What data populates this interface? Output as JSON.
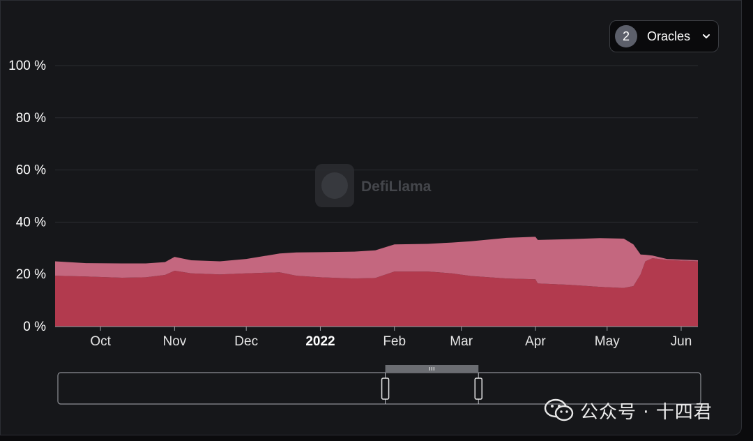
{
  "oracle_selector": {
    "count": "2",
    "label": "Oracles"
  },
  "watermark": {
    "text": "DefiLlama"
  },
  "footer_credit": {
    "text": "公众号 · 十四君"
  },
  "colors": {
    "background": "#16171a",
    "series_top": "#c4677f",
    "series_bottom": "#b23a4e",
    "grid": "#2a2c30",
    "slider_handle": "#6b6d72"
  },
  "chart_data": {
    "type": "area",
    "stacked": true,
    "percent": true,
    "ylim": [
      0,
      100
    ],
    "y_ticks": [
      "0 %",
      "20 %",
      "40 %",
      "60 %",
      "80 %",
      "100 %"
    ],
    "y_tick_values": [
      0,
      20,
      40,
      60,
      80,
      100
    ],
    "x_range": [
      "2021-09-12",
      "2022-06-08"
    ],
    "x_ticks": [
      {
        "label": "Oct",
        "date": "2021-10-01",
        "bold": false
      },
      {
        "label": "Nov",
        "date": "2021-11-01",
        "bold": false
      },
      {
        "label": "Dec",
        "date": "2021-12-01",
        "bold": false
      },
      {
        "label": "2022",
        "date": "2022-01-01",
        "bold": true
      },
      {
        "label": "Feb",
        "date": "2022-02-01",
        "bold": false
      },
      {
        "label": "Mar",
        "date": "2022-03-01",
        "bold": false
      },
      {
        "label": "Apr",
        "date": "2022-04-01",
        "bold": false
      },
      {
        "label": "May",
        "date": "2022-05-01",
        "bold": false
      },
      {
        "label": "Jun",
        "date": "2022-06-01",
        "bold": false
      }
    ],
    "grid": true,
    "series": [
      {
        "color": "#b23a4e",
        "points": [
          [
            "2021-09-12",
            19.5
          ],
          [
            "2021-09-25",
            19.2
          ],
          [
            "2021-10-10",
            18.7
          ],
          [
            "2021-10-20",
            18.9
          ],
          [
            "2021-10-28",
            19.8
          ],
          [
            "2021-11-01",
            21.4
          ],
          [
            "2021-11-08",
            20.4
          ],
          [
            "2021-11-20",
            20.0
          ],
          [
            "2021-12-01",
            20.4
          ],
          [
            "2021-12-15",
            20.8
          ],
          [
            "2021-12-22",
            19.5
          ],
          [
            "2022-01-01",
            18.9
          ],
          [
            "2022-01-15",
            18.4
          ],
          [
            "2022-01-24",
            18.6
          ],
          [
            "2022-02-01",
            21.1
          ],
          [
            "2022-02-15",
            21.1
          ],
          [
            "2022-02-25",
            20.4
          ],
          [
            "2022-03-05",
            19.4
          ],
          [
            "2022-03-20",
            18.4
          ],
          [
            "2022-04-01",
            18.1
          ],
          [
            "2022-04-02",
            16.5
          ],
          [
            "2022-04-15",
            16.0
          ],
          [
            "2022-04-28",
            15.2
          ],
          [
            "2022-05-08",
            14.8
          ],
          [
            "2022-05-12",
            15.5
          ],
          [
            "2022-05-15",
            20.0
          ],
          [
            "2022-05-17",
            25.0
          ],
          [
            "2022-05-20",
            26.2
          ],
          [
            "2022-05-26",
            25.5
          ],
          [
            "2022-06-08",
            25.0
          ]
        ]
      },
      {
        "color": "#c4677f",
        "points": [
          [
            "2021-09-12",
            5.5
          ],
          [
            "2021-09-25",
            5.1
          ],
          [
            "2021-10-10",
            5.5
          ],
          [
            "2021-10-20",
            5.3
          ],
          [
            "2021-10-28",
            4.9
          ],
          [
            "2021-11-01",
            5.3
          ],
          [
            "2021-11-08",
            5.0
          ],
          [
            "2021-11-20",
            5.0
          ],
          [
            "2021-12-01",
            5.5
          ],
          [
            "2021-12-15",
            7.2
          ],
          [
            "2021-12-22",
            8.9
          ],
          [
            "2022-01-01",
            9.6
          ],
          [
            "2022-01-15",
            10.3
          ],
          [
            "2022-01-24",
            10.6
          ],
          [
            "2022-02-01",
            10.4
          ],
          [
            "2022-02-15",
            10.6
          ],
          [
            "2022-02-25",
            11.8
          ],
          [
            "2022-03-05",
            13.3
          ],
          [
            "2022-03-20",
            15.6
          ],
          [
            "2022-04-01",
            16.3
          ],
          [
            "2022-04-02",
            16.7
          ],
          [
            "2022-04-15",
            17.5
          ],
          [
            "2022-04-28",
            18.7
          ],
          [
            "2022-05-08",
            18.9
          ],
          [
            "2022-05-12",
            16.0
          ],
          [
            "2022-05-15",
            7.6
          ],
          [
            "2022-05-17",
            2.5
          ],
          [
            "2022-05-20",
            1.0
          ],
          [
            "2022-05-26",
            0.4
          ],
          [
            "2022-06-08",
            0.4
          ]
        ]
      }
    ],
    "brush_range": [
      "2022-01-27",
      "2022-03-07"
    ]
  }
}
